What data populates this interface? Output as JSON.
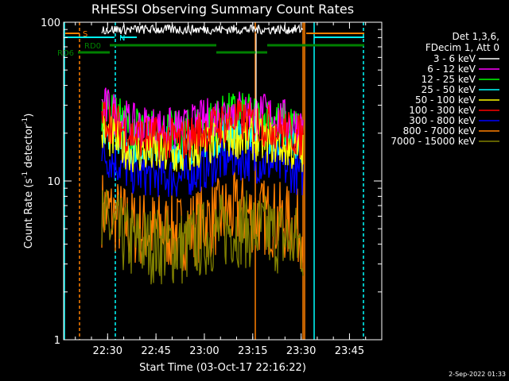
{
  "chart_data": {
    "type": "line",
    "title": "RHESSI Observing Summary Count Rates",
    "xlabel": "Start Time (03-Oct-17 22:16:22)",
    "ylabel_parts": [
      "Count Rate (s",
      "-1",
      " detector",
      "-1",
      ")"
    ],
    "yscale": "log",
    "ylim": [
      1,
      100
    ],
    "xlim": [
      "22:16:22",
      "23:55:00"
    ],
    "x_ticks": [
      "22:30",
      "22:45",
      "23:00",
      "23:15",
      "23:30",
      "23:45"
    ],
    "y_ticks": [
      "1",
      "10",
      "100"
    ],
    "footer": "2-Sep-2022 01:33",
    "legend_header": [
      "Det 1,3,6,",
      "FDecim 1, Att 0"
    ],
    "series": [
      {
        "name": "3 - 6 keV",
        "color": "#ffffff",
        "values_desc": "saturated ~90 count/s during sun window",
        "level": 90
      },
      {
        "name": "6 - 12 keV",
        "color": "#ff00ff",
        "level": 22
      },
      {
        "name": "12 - 25 keV",
        "color": "#00ff00",
        "level": 21
      },
      {
        "name": "25 - 50 keV",
        "color": "#00ffff",
        "level": 17
      },
      {
        "name": "50 - 100 keV",
        "color": "#ffff00",
        "level": 15
      },
      {
        "name": "100 - 300 keV",
        "color": "#ff0000",
        "level": 19
      },
      {
        "name": "300 - 800 keV",
        "color": "#0000ff",
        "level": 11
      },
      {
        "name": "800 - 7000 keV",
        "color": "#ff8000",
        "level": 5
      },
      {
        "name": "7000 - 15000 keV",
        "color": "#808000",
        "level": 4
      }
    ],
    "flags": [
      {
        "label": "S",
        "color": "#ff8000"
      },
      {
        "label": "RD0",
        "color": "#008000"
      },
      {
        "label": "RD6",
        "color": "#008000"
      },
      {
        "label": "N",
        "color": "#00ffff"
      }
    ]
  }
}
